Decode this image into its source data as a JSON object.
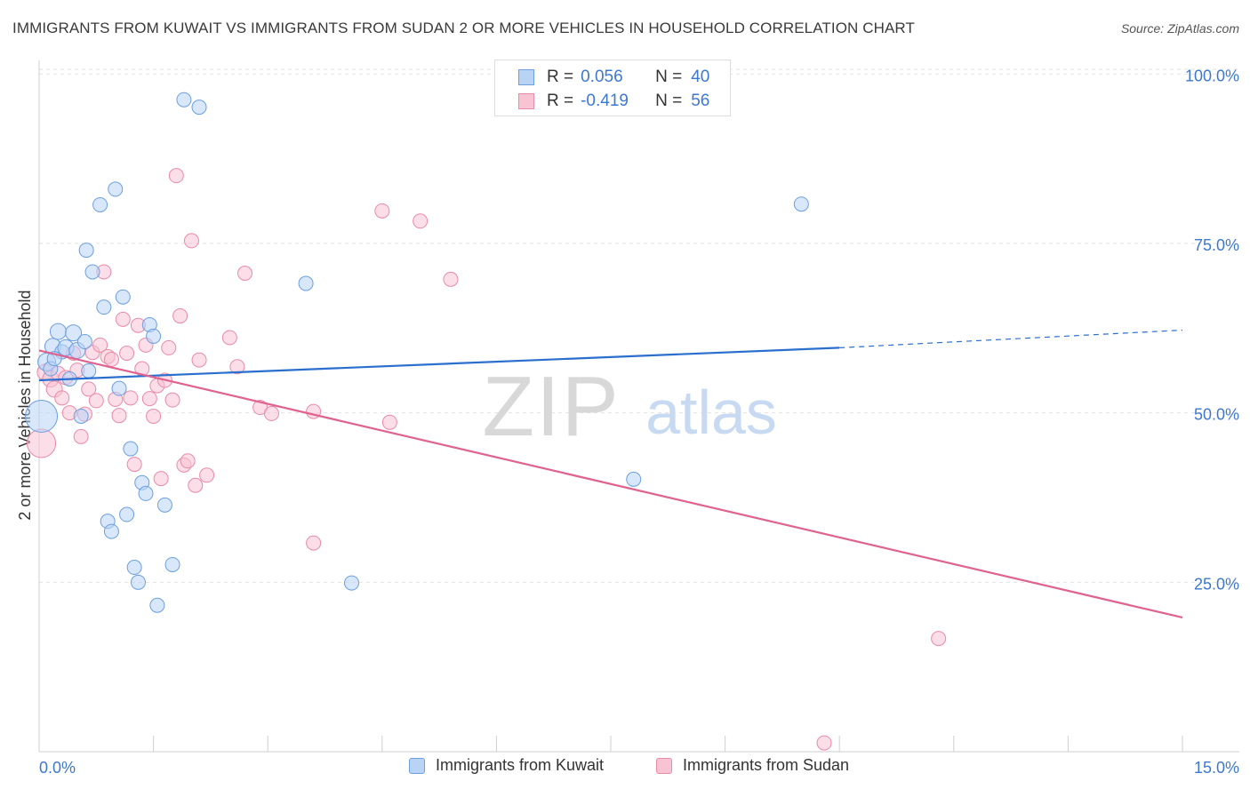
{
  "header": {
    "title": "IMMIGRANTS FROM KUWAIT VS IMMIGRANTS FROM SUDAN 2 OR MORE VEHICLES IN HOUSEHOLD CORRELATION CHART",
    "source": "Source: ZipAtlas.com"
  },
  "watermark": {
    "zip": "ZIP",
    "atlas": "atlas"
  },
  "colors": {
    "kuwait_fill": "#b9d3f5",
    "kuwait_stroke": "#6b9fe0",
    "kuwait_line": "#2b6fce",
    "sudan_fill": "#f8c3d3",
    "sudan_stroke": "#e98aa8",
    "sudan_line": "#e0628f",
    "accent_text": "#3d78d0"
  },
  "legend_top": {
    "rows": [
      {
        "r_label": "R =",
        "r_value": "0.056",
        "n_label": "N =",
        "n_value": "40"
      },
      {
        "r_label": "R =",
        "r_value": "-0.419",
        "n_label": "N =",
        "n_value": "56"
      }
    ]
  },
  "legend_bottom": {
    "kuwait": "Immigrants from Kuwait",
    "sudan": "Immigrants from Sudan"
  },
  "chart_data": {
    "type": "scatter",
    "title": "IMMIGRANTS FROM KUWAIT VS IMMIGRANTS FROM SUDAN 2 OR MORE VEHICLES IN HOUSEHOLD CORRELATION CHART",
    "xlabel": "",
    "ylabel": "2 or more Vehicles in Household",
    "xlim": [
      0,
      15
    ],
    "ylim": [
      0,
      102
    ],
    "x_tick_labels": [
      {
        "value": 0,
        "label": "0.0%"
      },
      {
        "value": 15,
        "label": "15.0%"
      }
    ],
    "y_tick_labels": [
      {
        "value": 25,
        "label": "25.0%"
      },
      {
        "value": 50,
        "label": "50.0%"
      },
      {
        "value": 75,
        "label": "75.0%"
      },
      {
        "value": 100,
        "label": "100.0%"
      }
    ],
    "grid": true,
    "legend_position": "top-center",
    "series": [
      {
        "name": "Immigrants from Kuwait",
        "r": 0.056,
        "n": 40,
        "trend": {
          "x0": 0,
          "y0": 54.8,
          "x1": 10.5,
          "y1": 59.6,
          "dashed_to_x": 15,
          "dashed_to_y": 62.2
        },
        "points": [
          [
            0.03,
            49.5,
            18
          ],
          [
            0.1,
            57.5,
            10
          ],
          [
            0.15,
            56.5,
            8
          ],
          [
            0.18,
            59.8,
            9
          ],
          [
            0.25,
            62.0,
            9
          ],
          [
            0.3,
            59.0,
            8
          ],
          [
            0.35,
            59.6,
            9
          ],
          [
            0.4,
            55.0,
            8
          ],
          [
            0.45,
            61.8,
            9
          ],
          [
            0.5,
            59.2,
            9
          ],
          [
            0.55,
            49.5,
            8
          ],
          [
            0.6,
            60.5,
            8
          ],
          [
            0.62,
            74.0,
            8
          ],
          [
            0.65,
            56.2,
            8
          ],
          [
            0.7,
            70.8,
            8
          ],
          [
            0.8,
            80.7,
            8
          ],
          [
            0.85,
            65.6,
            8
          ],
          [
            0.9,
            34.0,
            8
          ],
          [
            0.95,
            32.5,
            8
          ],
          [
            1.0,
            83.0,
            8
          ],
          [
            1.05,
            53.6,
            8
          ],
          [
            1.1,
            67.1,
            8
          ],
          [
            1.15,
            35.0,
            8
          ],
          [
            1.2,
            44.7,
            8
          ],
          [
            1.25,
            27.2,
            8
          ],
          [
            1.3,
            25.0,
            8
          ],
          [
            1.35,
            39.7,
            8
          ],
          [
            1.4,
            38.1,
            8
          ],
          [
            1.45,
            63.0,
            8
          ],
          [
            1.5,
            61.3,
            8
          ],
          [
            1.55,
            21.6,
            8
          ],
          [
            1.65,
            36.4,
            8
          ],
          [
            1.75,
            27.6,
            8
          ],
          [
            1.9,
            96.2,
            8
          ],
          [
            2.1,
            95.1,
            8
          ],
          [
            3.5,
            69.1,
            8
          ],
          [
            4.1,
            24.9,
            8
          ],
          [
            7.8,
            40.2,
            8
          ],
          [
            10.0,
            80.8,
            8
          ],
          [
            0.2,
            58.0,
            8
          ]
        ]
      },
      {
        "name": "Immigrants from Sudan",
        "r": -0.419,
        "n": 56,
        "trend": {
          "x0": 0,
          "y0": 59.2,
          "x1": 15,
          "y1": 19.8
        },
        "points": [
          [
            0.03,
            45.5,
            16
          ],
          [
            0.08,
            56.0,
            9
          ],
          [
            0.15,
            55.0,
            9
          ],
          [
            0.2,
            53.5,
            9
          ],
          [
            0.25,
            55.8,
            8
          ],
          [
            0.3,
            52.2,
            8
          ],
          [
            0.35,
            55.2,
            8
          ],
          [
            0.4,
            50.0,
            8
          ],
          [
            0.45,
            58.8,
            8
          ],
          [
            0.5,
            56.3,
            8
          ],
          [
            0.55,
            46.5,
            8
          ],
          [
            0.6,
            49.8,
            8
          ],
          [
            0.65,
            53.5,
            8
          ],
          [
            0.7,
            58.9,
            8
          ],
          [
            0.75,
            51.8,
            8
          ],
          [
            0.8,
            60.0,
            8
          ],
          [
            0.85,
            70.8,
            8
          ],
          [
            0.9,
            58.3,
            8
          ],
          [
            0.95,
            57.9,
            8
          ],
          [
            1.0,
            52.0,
            8
          ],
          [
            1.05,
            49.6,
            8
          ],
          [
            1.1,
            63.8,
            8
          ],
          [
            1.15,
            58.8,
            8
          ],
          [
            1.2,
            52.2,
            8
          ],
          [
            1.25,
            42.4,
            8
          ],
          [
            1.3,
            62.9,
            8
          ],
          [
            1.35,
            56.5,
            8
          ],
          [
            1.4,
            60.0,
            8
          ],
          [
            1.45,
            52.1,
            8
          ],
          [
            1.5,
            49.5,
            8
          ],
          [
            1.55,
            54.0,
            8
          ],
          [
            1.6,
            40.3,
            8
          ],
          [
            1.65,
            54.8,
            8
          ],
          [
            1.7,
            59.6,
            8
          ],
          [
            1.75,
            51.9,
            8
          ],
          [
            1.8,
            85.0,
            8
          ],
          [
            1.85,
            64.3,
            8
          ],
          [
            1.9,
            42.3,
            8
          ],
          [
            1.95,
            42.9,
            8
          ],
          [
            2.0,
            75.4,
            8
          ],
          [
            2.05,
            39.3,
            8
          ],
          [
            2.1,
            57.8,
            8
          ],
          [
            2.2,
            40.8,
            8
          ],
          [
            2.5,
            61.1,
            8
          ],
          [
            2.7,
            70.6,
            8
          ],
          [
            2.9,
            50.8,
            8
          ],
          [
            3.05,
            49.9,
            8
          ],
          [
            3.6,
            50.2,
            8
          ],
          [
            3.6,
            30.8,
            8
          ],
          [
            4.5,
            79.8,
            8
          ],
          [
            4.6,
            48.6,
            8
          ],
          [
            5.0,
            78.3,
            8
          ],
          [
            5.4,
            69.7,
            8
          ],
          [
            11.8,
            16.7,
            8
          ],
          [
            10.3,
            1.3,
            8
          ],
          [
            2.6,
            56.8,
            8
          ]
        ]
      }
    ]
  }
}
